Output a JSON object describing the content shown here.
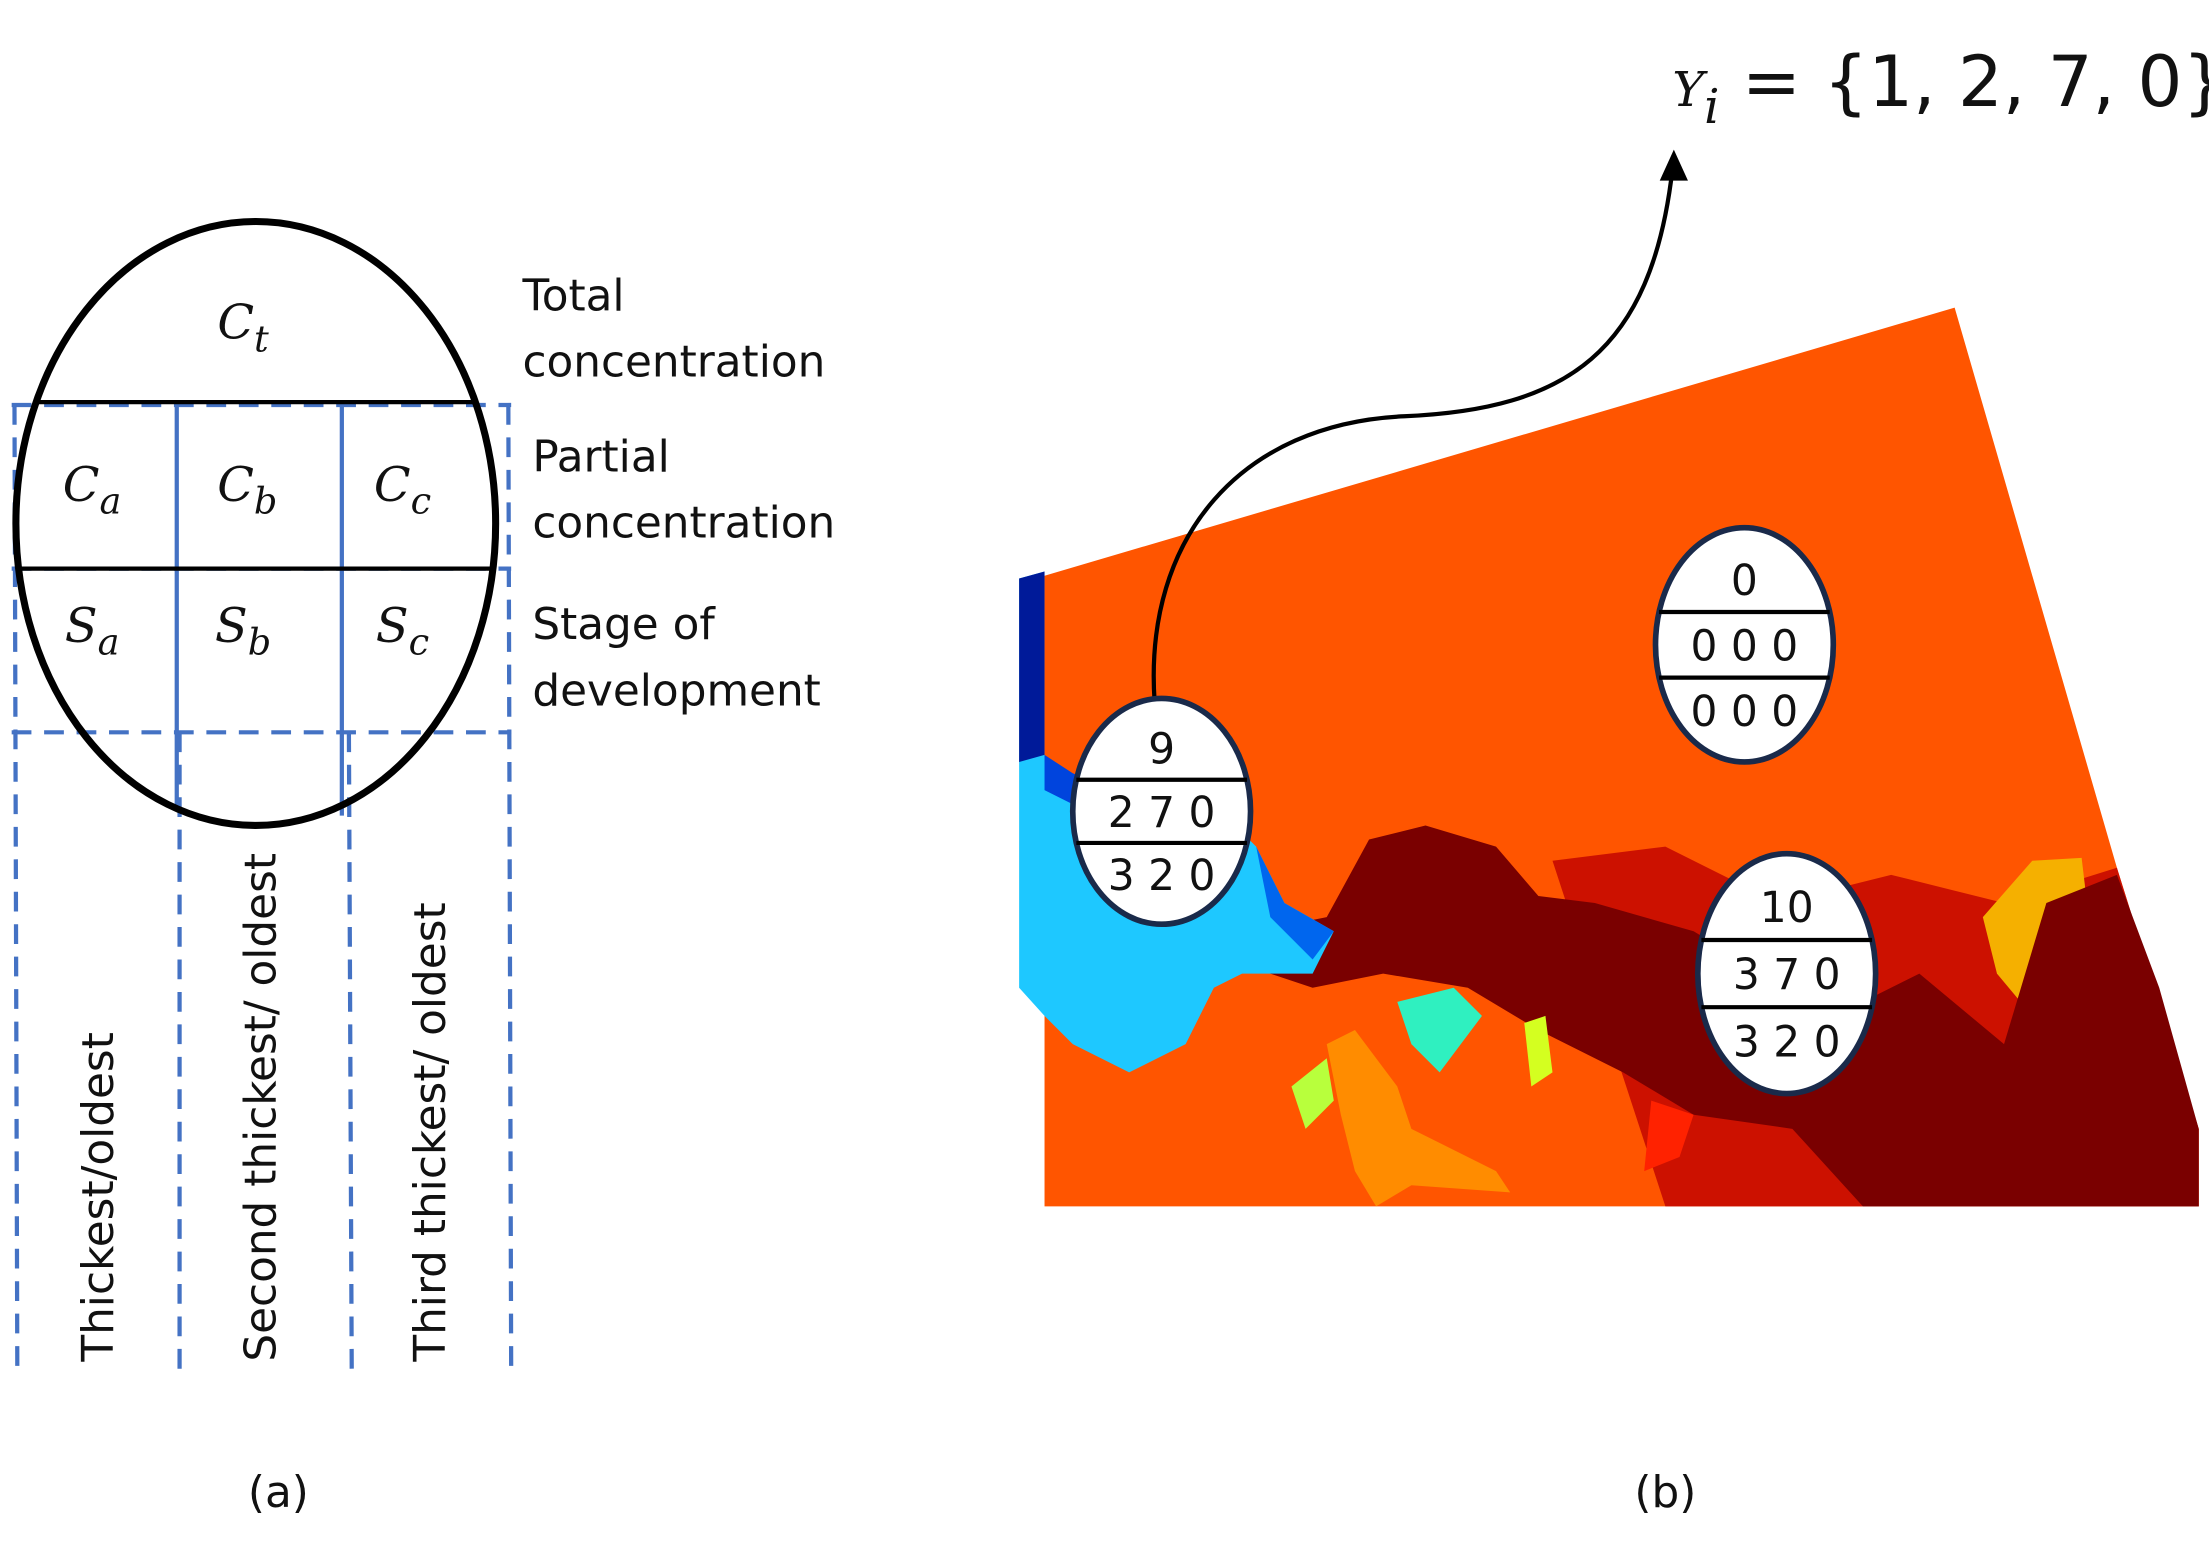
{
  "panel_a": {
    "symbols": [
      {
        "base": "C",
        "sub": "t"
      },
      {
        "base": "C",
        "sub": "a"
      },
      {
        "base": "C",
        "sub": "b"
      },
      {
        "base": "C",
        "sub": "c"
      },
      {
        "base": "S",
        "sub": "a"
      },
      {
        "base": "S",
        "sub": "b"
      },
      {
        "base": "S",
        "sub": "c"
      }
    ],
    "row_labels": [
      [
        "Total",
        "concentration"
      ],
      [
        "Partial",
        "concentration"
      ],
      [
        "Stage of",
        "development"
      ]
    ],
    "column_labels": [
      "Thickest/oldest",
      "Second thickest/ oldest",
      "Third thickest/ oldest"
    ],
    "caption": "(a)"
  },
  "panel_b": {
    "formula": {
      "base": "Y",
      "sub": "i",
      "rest": " = {1, 2, 7, 0}"
    },
    "eggs": [
      [
        "9",
        "2 7 0",
        "3 2 0"
      ],
      [
        "0",
        "0 0 0",
        "0 0 0"
      ],
      [
        "10",
        "3 7 0",
        "3 2 0"
      ]
    ],
    "caption": "(b)"
  }
}
